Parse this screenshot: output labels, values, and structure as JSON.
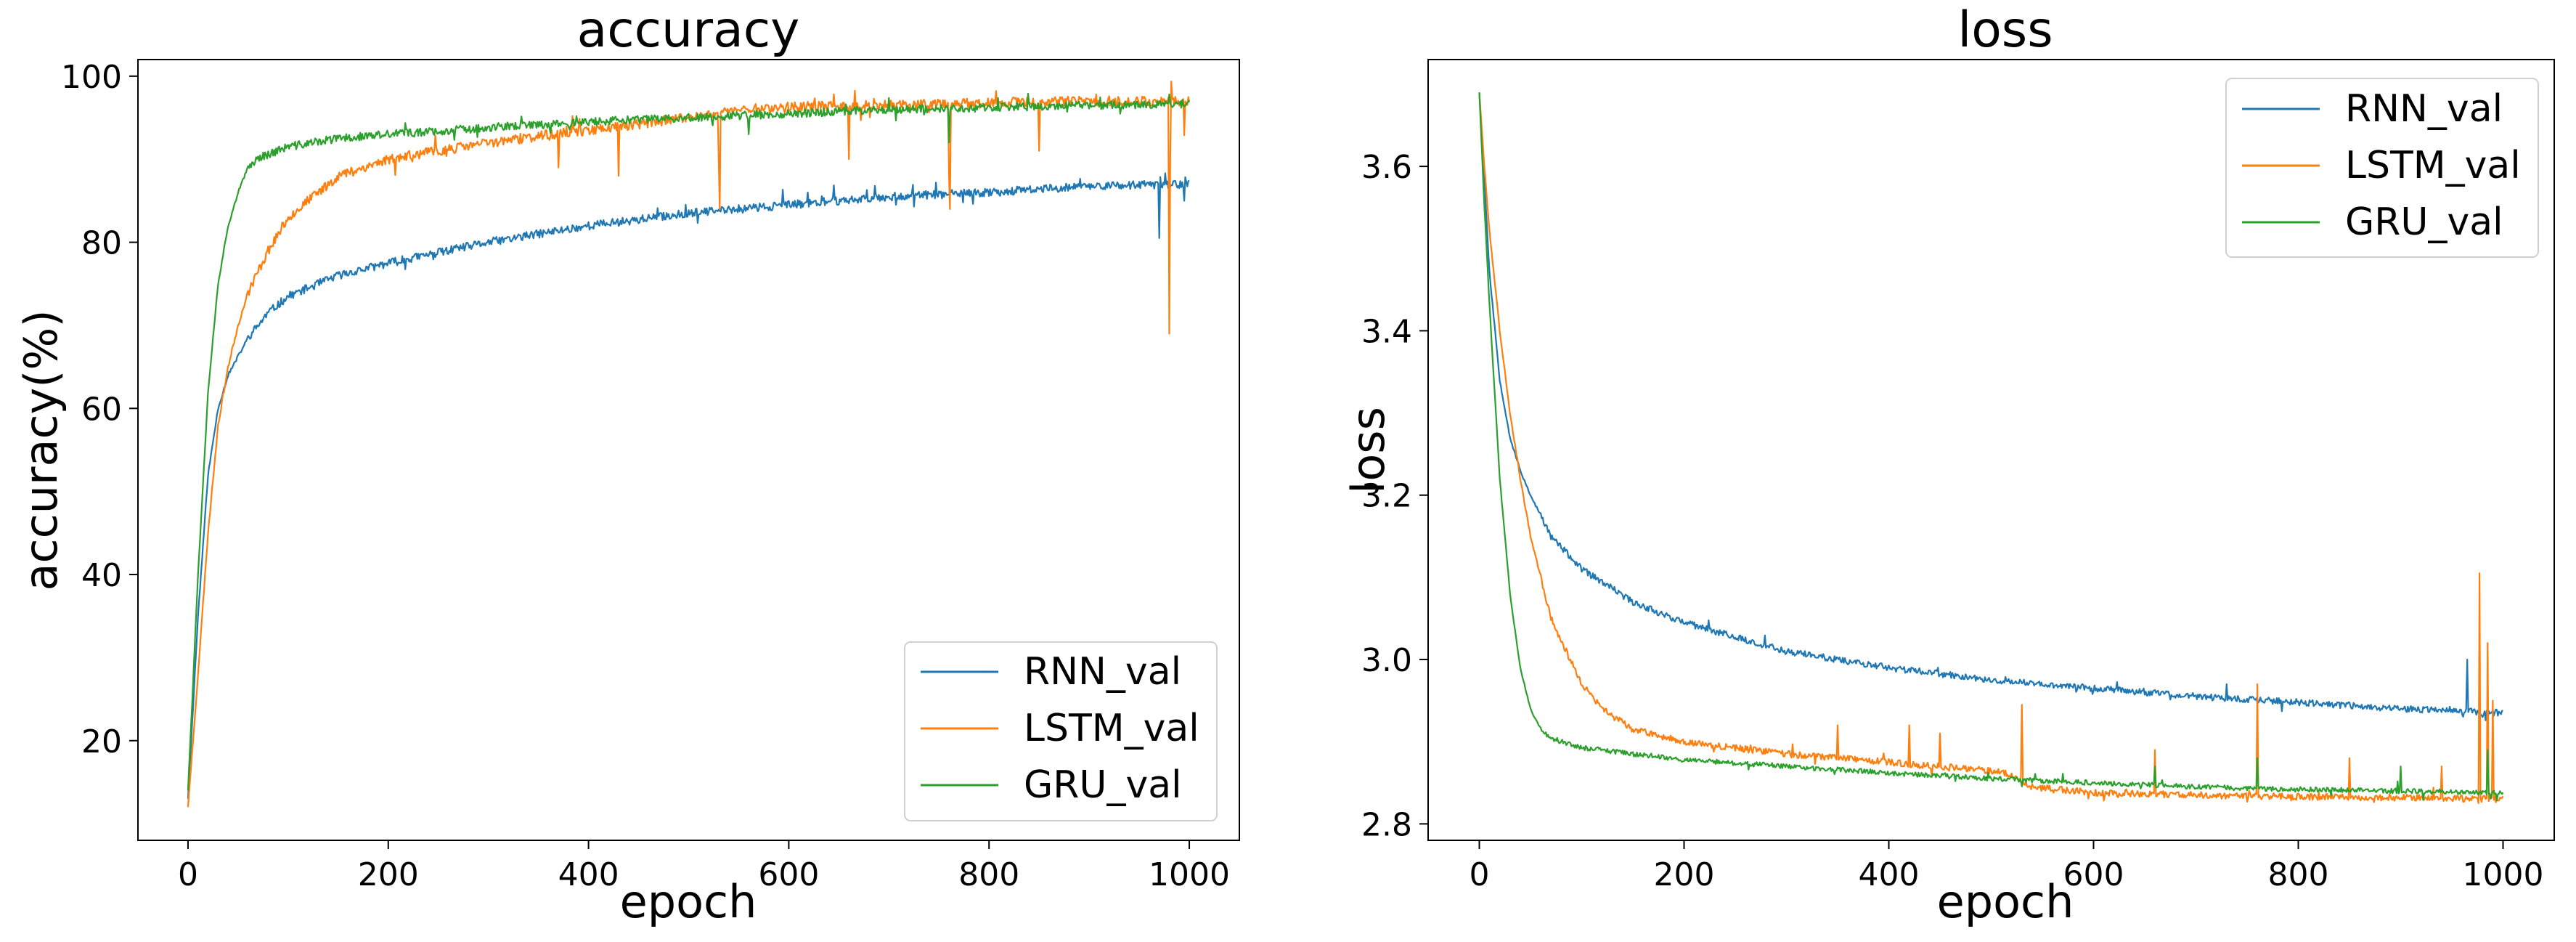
{
  "chart_data": [
    {
      "type": "line",
      "title": "accuracy",
      "xlabel": "epoch",
      "ylabel": "accuracy(%)",
      "xlim": [
        -50,
        1050
      ],
      "ylim": [
        8,
        102
      ],
      "xticks": [
        0,
        200,
        400,
        600,
        800,
        1000
      ],
      "xtick_labels": [
        "0",
        "200",
        "400",
        "600",
        "800",
        "1000"
      ],
      "yticks": [
        20,
        40,
        60,
        80,
        100
      ],
      "ytick_labels": [
        "20",
        "40",
        "60",
        "80",
        "100"
      ],
      "grid": false,
      "legend": "lower-right",
      "series": [
        {
          "name": "RNN_val",
          "color": "#1f77b4",
          "noise": 0.5,
          "seed": 11,
          "x": [
            0,
            10,
            20,
            30,
            40,
            60,
            80,
            100,
            150,
            200,
            300,
            400,
            500,
            600,
            700,
            800,
            900,
            1000
          ],
          "y": [
            13,
            35,
            52,
            60,
            64,
            68.5,
            71.5,
            73.5,
            76,
            77.5,
            80,
            82,
            83.5,
            84.5,
            85.5,
            86,
            86.8,
            87
          ],
          "spikes": [
            [
              970,
              80.5
            ],
            [
              995,
              85
            ]
          ]
        },
        {
          "name": "LSTM_val",
          "color": "#ff7f0e",
          "noise": 0.6,
          "seed": 23,
          "x": [
            0,
            10,
            20,
            30,
            40,
            50,
            60,
            80,
            100,
            150,
            200,
            300,
            400,
            500,
            550,
            600,
            700,
            800,
            900,
            1000
          ],
          "y": [
            12,
            28,
            45,
            58,
            65,
            70,
            74,
            79,
            83,
            88,
            90,
            92,
            93.5,
            95,
            96,
            96.3,
            96.5,
            96.8,
            97,
            97
          ],
          "spikes": [
            [
              370,
              89
            ],
            [
              430,
              88
            ],
            [
              530,
              90
            ],
            [
              531,
              84
            ],
            [
              660,
              90
            ],
            [
              760,
              88
            ],
            [
              761,
              84
            ],
            [
              850,
              91
            ],
            [
              980,
              69
            ],
            [
              981,
              90
            ],
            [
              995,
              93
            ]
          ]
        },
        {
          "name": "GRU_val",
          "color": "#2ca02c",
          "noise": 0.5,
          "seed": 37,
          "x": [
            0,
            10,
            20,
            30,
            40,
            50,
            60,
            70,
            80,
            100,
            150,
            200,
            300,
            400,
            500,
            600,
            700,
            800,
            900,
            1000
          ],
          "y": [
            14,
            40,
            62,
            75,
            82,
            86,
            89,
            90.2,
            90.6,
            91.5,
            92.5,
            93,
            93.8,
            94.5,
            95,
            95.5,
            96,
            96.2,
            96.5,
            96.7
          ],
          "spikes": [
            [
              560,
              93
            ],
            [
              760,
              92
            ]
          ]
        }
      ]
    },
    {
      "type": "line",
      "title": "loss",
      "xlabel": "epoch",
      "ylabel": "loss",
      "xlim": [
        -50,
        1050
      ],
      "ylim": [
        2.78,
        3.73
      ],
      "xticks": [
        0,
        200,
        400,
        600,
        800,
        1000
      ],
      "xtick_labels": [
        "0",
        "200",
        "400",
        "600",
        "800",
        "1000"
      ],
      "yticks": [
        2.8,
        3.0,
        3.2,
        3.4,
        3.6
      ],
      "ytick_labels": [
        "2.8",
        "3.0",
        "3.2",
        "3.4",
        "3.6"
      ],
      "grid": false,
      "legend": "upper-right",
      "series": [
        {
          "name": "RNN_val",
          "color": "#1f77b4",
          "noise": 0.004,
          "seed": 53,
          "x": [
            0,
            5,
            10,
            20,
            30,
            40,
            50,
            70,
            100,
            150,
            200,
            300,
            400,
            500,
            600,
            700,
            800,
            900,
            1000
          ],
          "y": [
            3.69,
            3.58,
            3.47,
            3.34,
            3.27,
            3.23,
            3.2,
            3.15,
            3.11,
            3.07,
            3.045,
            3.01,
            2.99,
            2.975,
            2.965,
            2.955,
            2.948,
            2.94,
            2.935
          ],
          "spikes": [
            [
              730,
              2.97
            ],
            [
              965,
              3.0
            ],
            [
              980,
              2.93
            ]
          ]
        },
        {
          "name": "LSTM_val",
          "color": "#ff7f0e",
          "noise": 0.004,
          "seed": 67,
          "x": [
            0,
            5,
            10,
            20,
            30,
            40,
            50,
            70,
            100,
            120,
            150,
            200,
            300,
            400,
            500,
            520,
            540,
            600,
            700,
            800,
            900,
            1000
          ],
          "y": [
            3.69,
            3.6,
            3.52,
            3.4,
            3.3,
            3.22,
            3.15,
            3.05,
            2.97,
            2.94,
            2.915,
            2.9,
            2.885,
            2.875,
            2.865,
            2.86,
            2.845,
            2.838,
            2.835,
            2.833,
            2.832,
            2.83
          ],
          "spikes": [
            [
              350,
              2.92
            ],
            [
              420,
              2.92
            ],
            [
              450,
              2.91
            ],
            [
              530,
              2.945
            ],
            [
              660,
              2.89
            ],
            [
              760,
              2.97
            ],
            [
              850,
              2.88
            ],
            [
              940,
              2.87
            ],
            [
              977,
              3.105
            ],
            [
              985,
              3.02
            ],
            [
              990,
              2.95
            ]
          ]
        },
        {
          "name": "GRU_val",
          "color": "#2ca02c",
          "noise": 0.003,
          "seed": 79,
          "x": [
            0,
            5,
            10,
            20,
            30,
            40,
            50,
            60,
            70,
            80,
            100,
            150,
            200,
            300,
            400,
            500,
            600,
            700,
            800,
            900,
            1000
          ],
          "y": [
            3.69,
            3.55,
            3.43,
            3.22,
            3.08,
            2.99,
            2.94,
            2.915,
            2.905,
            2.9,
            2.893,
            2.885,
            2.878,
            2.87,
            2.862,
            2.855,
            2.85,
            2.845,
            2.842,
            2.84,
            2.838
          ],
          "spikes": [
            [
              660,
              2.87
            ],
            [
              760,
              2.88
            ],
            [
              900,
              2.87
            ],
            [
              985,
              2.89
            ]
          ]
        }
      ]
    }
  ]
}
